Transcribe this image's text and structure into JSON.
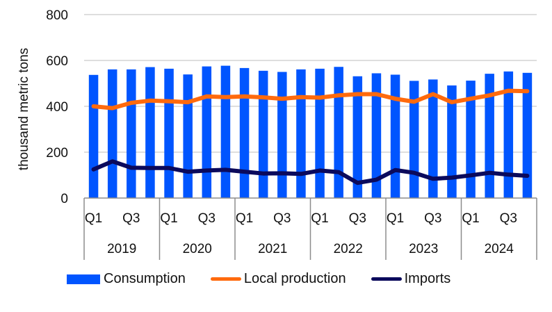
{
  "colors": {
    "consumption": "#0055FF",
    "local_production": "#FF6A0D",
    "imports": "#0B0A5C",
    "grid": "#D4D4D4",
    "axis": "#8C8C8C"
  },
  "chart_data": {
    "type": "bar",
    "title": "",
    "xlabel": "",
    "ylabel": "thousand metric tons",
    "ylim": [
      0,
      800
    ],
    "yticks": [
      0,
      200,
      400,
      600,
      800
    ],
    "grid": true,
    "legend_position": "bottom",
    "years": [
      "2019",
      "2020",
      "2021",
      "2022",
      "2023",
      "2024"
    ],
    "quarter_tick_labels": [
      "Q1",
      "Q3"
    ],
    "categories": [
      "2019 Q1",
      "2019 Q2",
      "2019 Q3",
      "2019 Q4",
      "2020 Q1",
      "2020 Q2",
      "2020 Q3",
      "2020 Q4",
      "2021 Q1",
      "2021 Q2",
      "2021 Q3",
      "2021 Q4",
      "2022 Q1",
      "2022 Q2",
      "2022 Q3",
      "2022 Q4",
      "2023 Q1",
      "2023 Q2",
      "2023 Q3",
      "2023 Q4",
      "2024 Q1",
      "2024 Q2",
      "2024 Q3",
      "2024 Q4"
    ],
    "series": [
      {
        "name": "Consumption",
        "type": "bar",
        "values": [
          537,
          561,
          561,
          571,
          564,
          539,
          574,
          577,
          567,
          555,
          550,
          561,
          564,
          572,
          531,
          544,
          538,
          511,
          517,
          491,
          512,
          542,
          552,
          546
        ]
      },
      {
        "name": "Local production",
        "type": "line",
        "values": [
          400,
          392,
          415,
          425,
          422,
          418,
          443,
          440,
          443,
          439,
          433,
          440,
          438,
          448,
          453,
          453,
          433,
          420,
          453,
          418,
          433,
          448,
          468,
          466
        ]
      },
      {
        "name": "Imports",
        "type": "line",
        "values": [
          125,
          160,
          132,
          131,
          131,
          115,
          120,
          123,
          115,
          107,
          108,
          105,
          120,
          113,
          66,
          80,
          122,
          110,
          84,
          89,
          99,
          110,
          102,
          97
        ]
      }
    ]
  },
  "legend": {
    "items": [
      {
        "label": "Consumption"
      },
      {
        "label": "Local production"
      },
      {
        "label": "Imports"
      }
    ]
  }
}
